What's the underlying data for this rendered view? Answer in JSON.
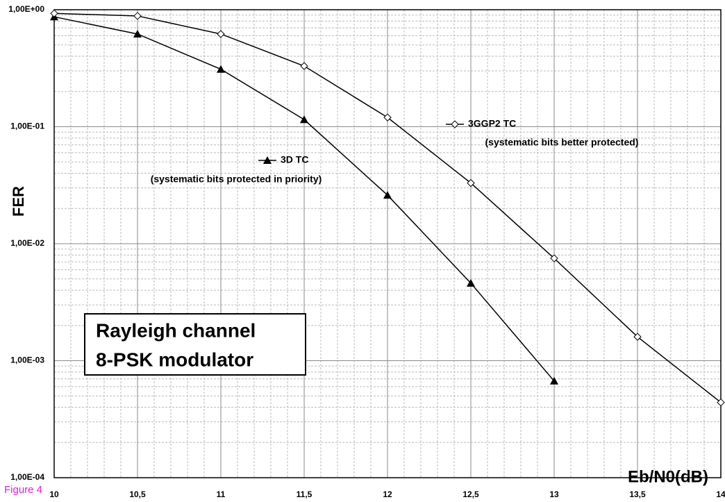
{
  "chart_data": {
    "type": "line",
    "y_label": "FER",
    "x_label": "Eb/N0(dB)",
    "caption": "Figure 4",
    "box_text": [
      "Rayleigh channel",
      "8-PSK modulator"
    ],
    "annotations": [
      "(systematic bits protected in priority)",
      "(systematic bits better protected)"
    ],
    "x": [
      10,
      10.5,
      11,
      11.5,
      12,
      12.5,
      13,
      13.5,
      14
    ],
    "series": [
      {
        "name": "3D TC",
        "color": "#000000",
        "marker": "triangle",
        "values": [
          0.87,
          0.62,
          0.31,
          0.115,
          0.026,
          0.0046,
          0.00067,
          null,
          null
        ]
      },
      {
        "name": "3GGP2 TC",
        "color": "#000000",
        "marker": "diamond",
        "values": [
          0.93,
          0.885,
          0.62,
          0.33,
          0.12,
          0.033,
          0.0075,
          0.0016,
          0.00044
        ]
      }
    ],
    "xlim": [
      10,
      14
    ],
    "xticks": [
      10,
      {
        "value": 10.5,
        "label": "10,5"
      },
      11,
      {
        "value": 11.5,
        "label": "11,5"
      },
      12,
      {
        "value": 12.5,
        "label": "12,5"
      },
      13,
      {
        "value": 13.5,
        "label": "13,5"
      },
      14
    ],
    "ylim": [
      0.0001,
      1
    ],
    "yticks": [
      {
        "value": 0.0001,
        "label": "1,00E-04"
      },
      {
        "value": 0.001,
        "label": "1,00E-03"
      },
      {
        "value": 0.01,
        "label": "1,00E-02"
      },
      {
        "value": 0.1,
        "label": "1,00E-01"
      },
      {
        "value": 1,
        "label": "1,00E+00"
      }
    ],
    "log_y": true,
    "grid": true
  }
}
